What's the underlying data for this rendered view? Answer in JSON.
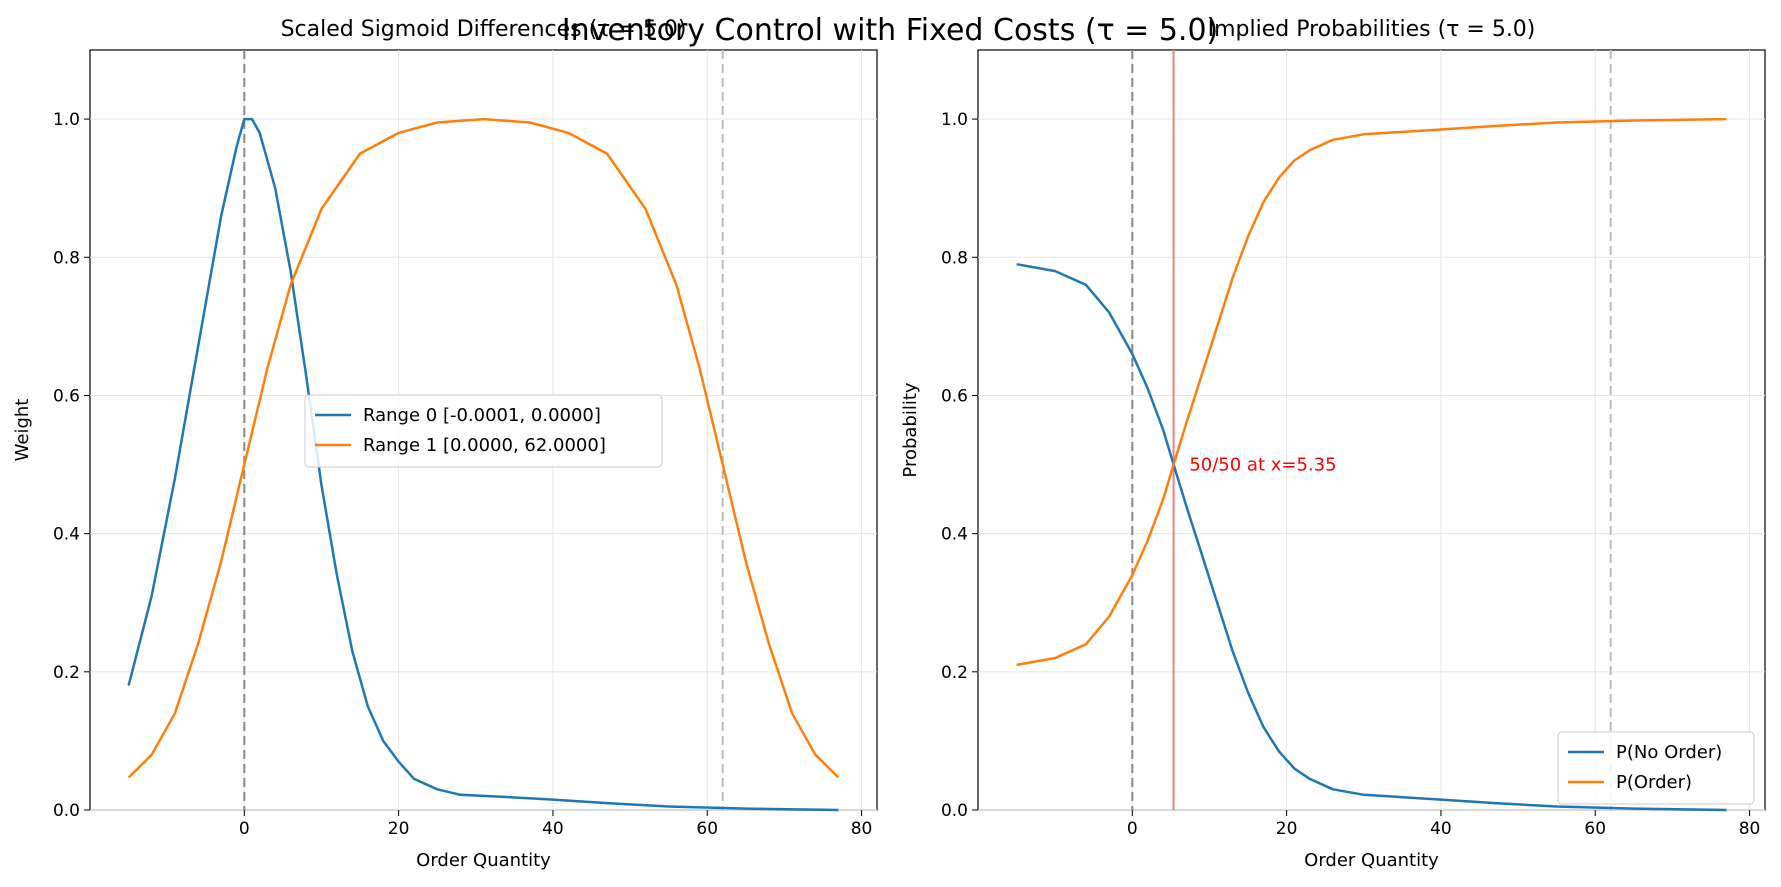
{
  "figure": {
    "suptitle": "Inventory Control with Fixed Costs (τ = 5.0)"
  },
  "chart_data": [
    {
      "type": "line",
      "title": "Scaled Sigmoid Differences (τ = 5.0)",
      "xlabel": "Order Quantity",
      "ylabel": "Weight",
      "xlim": [
        -20,
        82
      ],
      "ylim": [
        0,
        1.1
      ],
      "xticks": [
        0,
        20,
        40,
        60,
        80
      ],
      "xtick_labels": [
        "0",
        "20",
        "40",
        "60",
        "80"
      ],
      "yticks": [
        0,
        0.2,
        0.4,
        0.6,
        0.8,
        1.0
      ],
      "ytick_labels": [
        "0.0",
        "0.2",
        "0.4",
        "0.6",
        "0.8",
        "1.0"
      ],
      "grid": true,
      "legend_position": "center",
      "vlines": [
        {
          "x": 0,
          "style": "dashed",
          "color": "#888888"
        },
        {
          "x": 62,
          "style": "dashed",
          "color": "#bbbbbb"
        }
      ],
      "series": [
        {
          "name": "Range 0 [-0.0001, 0.0000]",
          "color": "#1f77b4",
          "x": [
            -15,
            -12,
            -9,
            -6,
            -3,
            -1,
            0,
            1,
            2,
            4,
            6,
            8,
            10,
            12,
            14,
            16,
            18,
            20,
            22,
            25,
            28,
            32,
            40,
            47,
            55,
            65,
            77
          ],
          "y": [
            0.18,
            0.31,
            0.48,
            0.67,
            0.86,
            0.96,
            1.0,
            1.0,
            0.98,
            0.9,
            0.78,
            0.63,
            0.47,
            0.34,
            0.23,
            0.15,
            0.1,
            0.07,
            0.045,
            0.03,
            0.022,
            0.02,
            0.015,
            0.01,
            0.005,
            0.002,
            0.0
          ]
        },
        {
          "name": "Range 1 [0.0000, 62.0000]",
          "color": "#ff7f0e",
          "x": [
            -15,
            -12,
            -9,
            -6,
            -3,
            0,
            3,
            6,
            10,
            15,
            20,
            25,
            31,
            37,
            42,
            47,
            52,
            56,
            59,
            62,
            65,
            68,
            71,
            74,
            77
          ],
          "y": [
            0.047,
            0.08,
            0.14,
            0.24,
            0.36,
            0.5,
            0.64,
            0.76,
            0.87,
            0.95,
            0.98,
            0.995,
            1.0,
            0.995,
            0.98,
            0.95,
            0.87,
            0.76,
            0.64,
            0.5,
            0.36,
            0.24,
            0.14,
            0.08,
            0.047
          ]
        }
      ]
    },
    {
      "type": "line",
      "title": "Implied Probabilities (τ = 5.0)",
      "xlabel": "Order Quantity",
      "ylabel": "Probability",
      "xlim": [
        -20,
        82
      ],
      "ylim": [
        0,
        1.1
      ],
      "xticks": [
        0,
        20,
        40,
        60,
        80
      ],
      "xtick_labels": [
        "0",
        "20",
        "40",
        "60",
        "80"
      ],
      "yticks": [
        0,
        0.2,
        0.4,
        0.6,
        0.8,
        1.0
      ],
      "ytick_labels": [
        "0.0",
        "0.2",
        "0.4",
        "0.6",
        "0.8",
        "1.0"
      ],
      "grid": true,
      "legend_position": "lower right",
      "vlines": [
        {
          "x": 0,
          "style": "dashed",
          "color": "#888888"
        },
        {
          "x": 62,
          "style": "dashed",
          "color": "#bbbbbb"
        },
        {
          "x": 5.35,
          "style": "solid",
          "color": "#f08080"
        }
      ],
      "annotation": {
        "text": "50/50 at x=5.35",
        "x": 7,
        "y": 0.5,
        "color": "#ff0000"
      },
      "series": [
        {
          "name": "P(No Order)",
          "color": "#1f77b4",
          "x": [
            -15,
            -10,
            -6,
            -3,
            0,
            2,
            4,
            5.35,
            7,
            9,
            11,
            13,
            15,
            17,
            19,
            21,
            23,
            26,
            30,
            40,
            47,
            55,
            65,
            77
          ],
          "y": [
            0.79,
            0.78,
            0.76,
            0.72,
            0.66,
            0.61,
            0.55,
            0.5,
            0.44,
            0.37,
            0.3,
            0.23,
            0.17,
            0.12,
            0.085,
            0.06,
            0.045,
            0.03,
            0.022,
            0.015,
            0.01,
            0.005,
            0.002,
            0.0
          ]
        },
        {
          "name": "P(Order)",
          "color": "#ff7f0e",
          "x": [
            -15,
            -10,
            -6,
            -3,
            0,
            2,
            4,
            5.35,
            7,
            9,
            11,
            13,
            15,
            17,
            19,
            21,
            23,
            26,
            30,
            40,
            47,
            55,
            65,
            77
          ],
          "y": [
            0.21,
            0.22,
            0.24,
            0.28,
            0.34,
            0.39,
            0.45,
            0.5,
            0.56,
            0.63,
            0.7,
            0.77,
            0.83,
            0.88,
            0.915,
            0.94,
            0.955,
            0.97,
            0.978,
            0.985,
            0.99,
            0.995,
            0.998,
            1.0
          ]
        }
      ]
    }
  ]
}
